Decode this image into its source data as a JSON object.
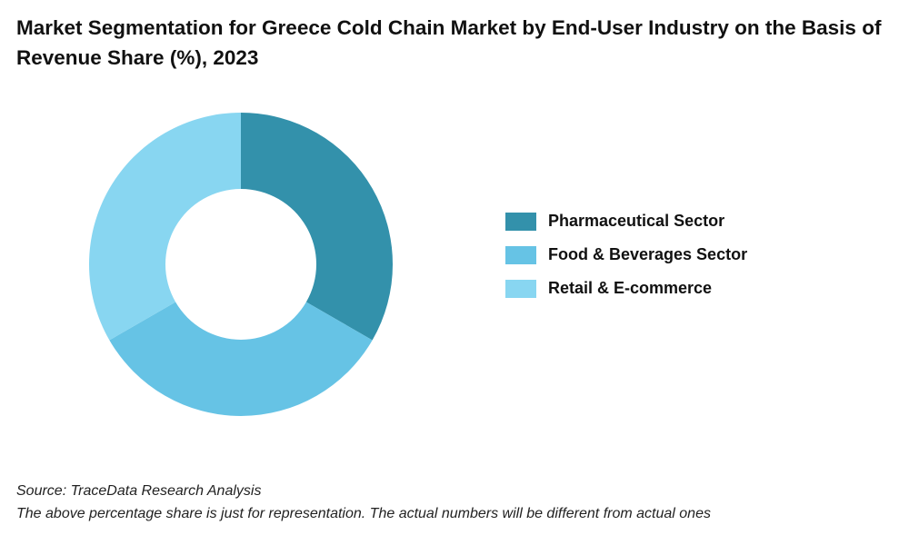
{
  "chart_data": {
    "type": "pie",
    "title": "Market Segmentation for Greece Cold Chain Market by End-User Industry on the Basis of Revenue Share (%), 2023",
    "donut": true,
    "categories": [
      "Pharmaceutical Sector",
      "Food & Beverages Sector",
      "Retail & E-commerce"
    ],
    "values": [
      33.3,
      33.3,
      33.3
    ],
    "colors": [
      "#3391AB",
      "#66C3E5",
      "#88D6F1"
    ],
    "legend": "right"
  },
  "footer": {
    "source": "Source: TraceData Research Analysis",
    "note": "The above percentage share is just for representation. The actual numbers will be different from actual ones"
  }
}
